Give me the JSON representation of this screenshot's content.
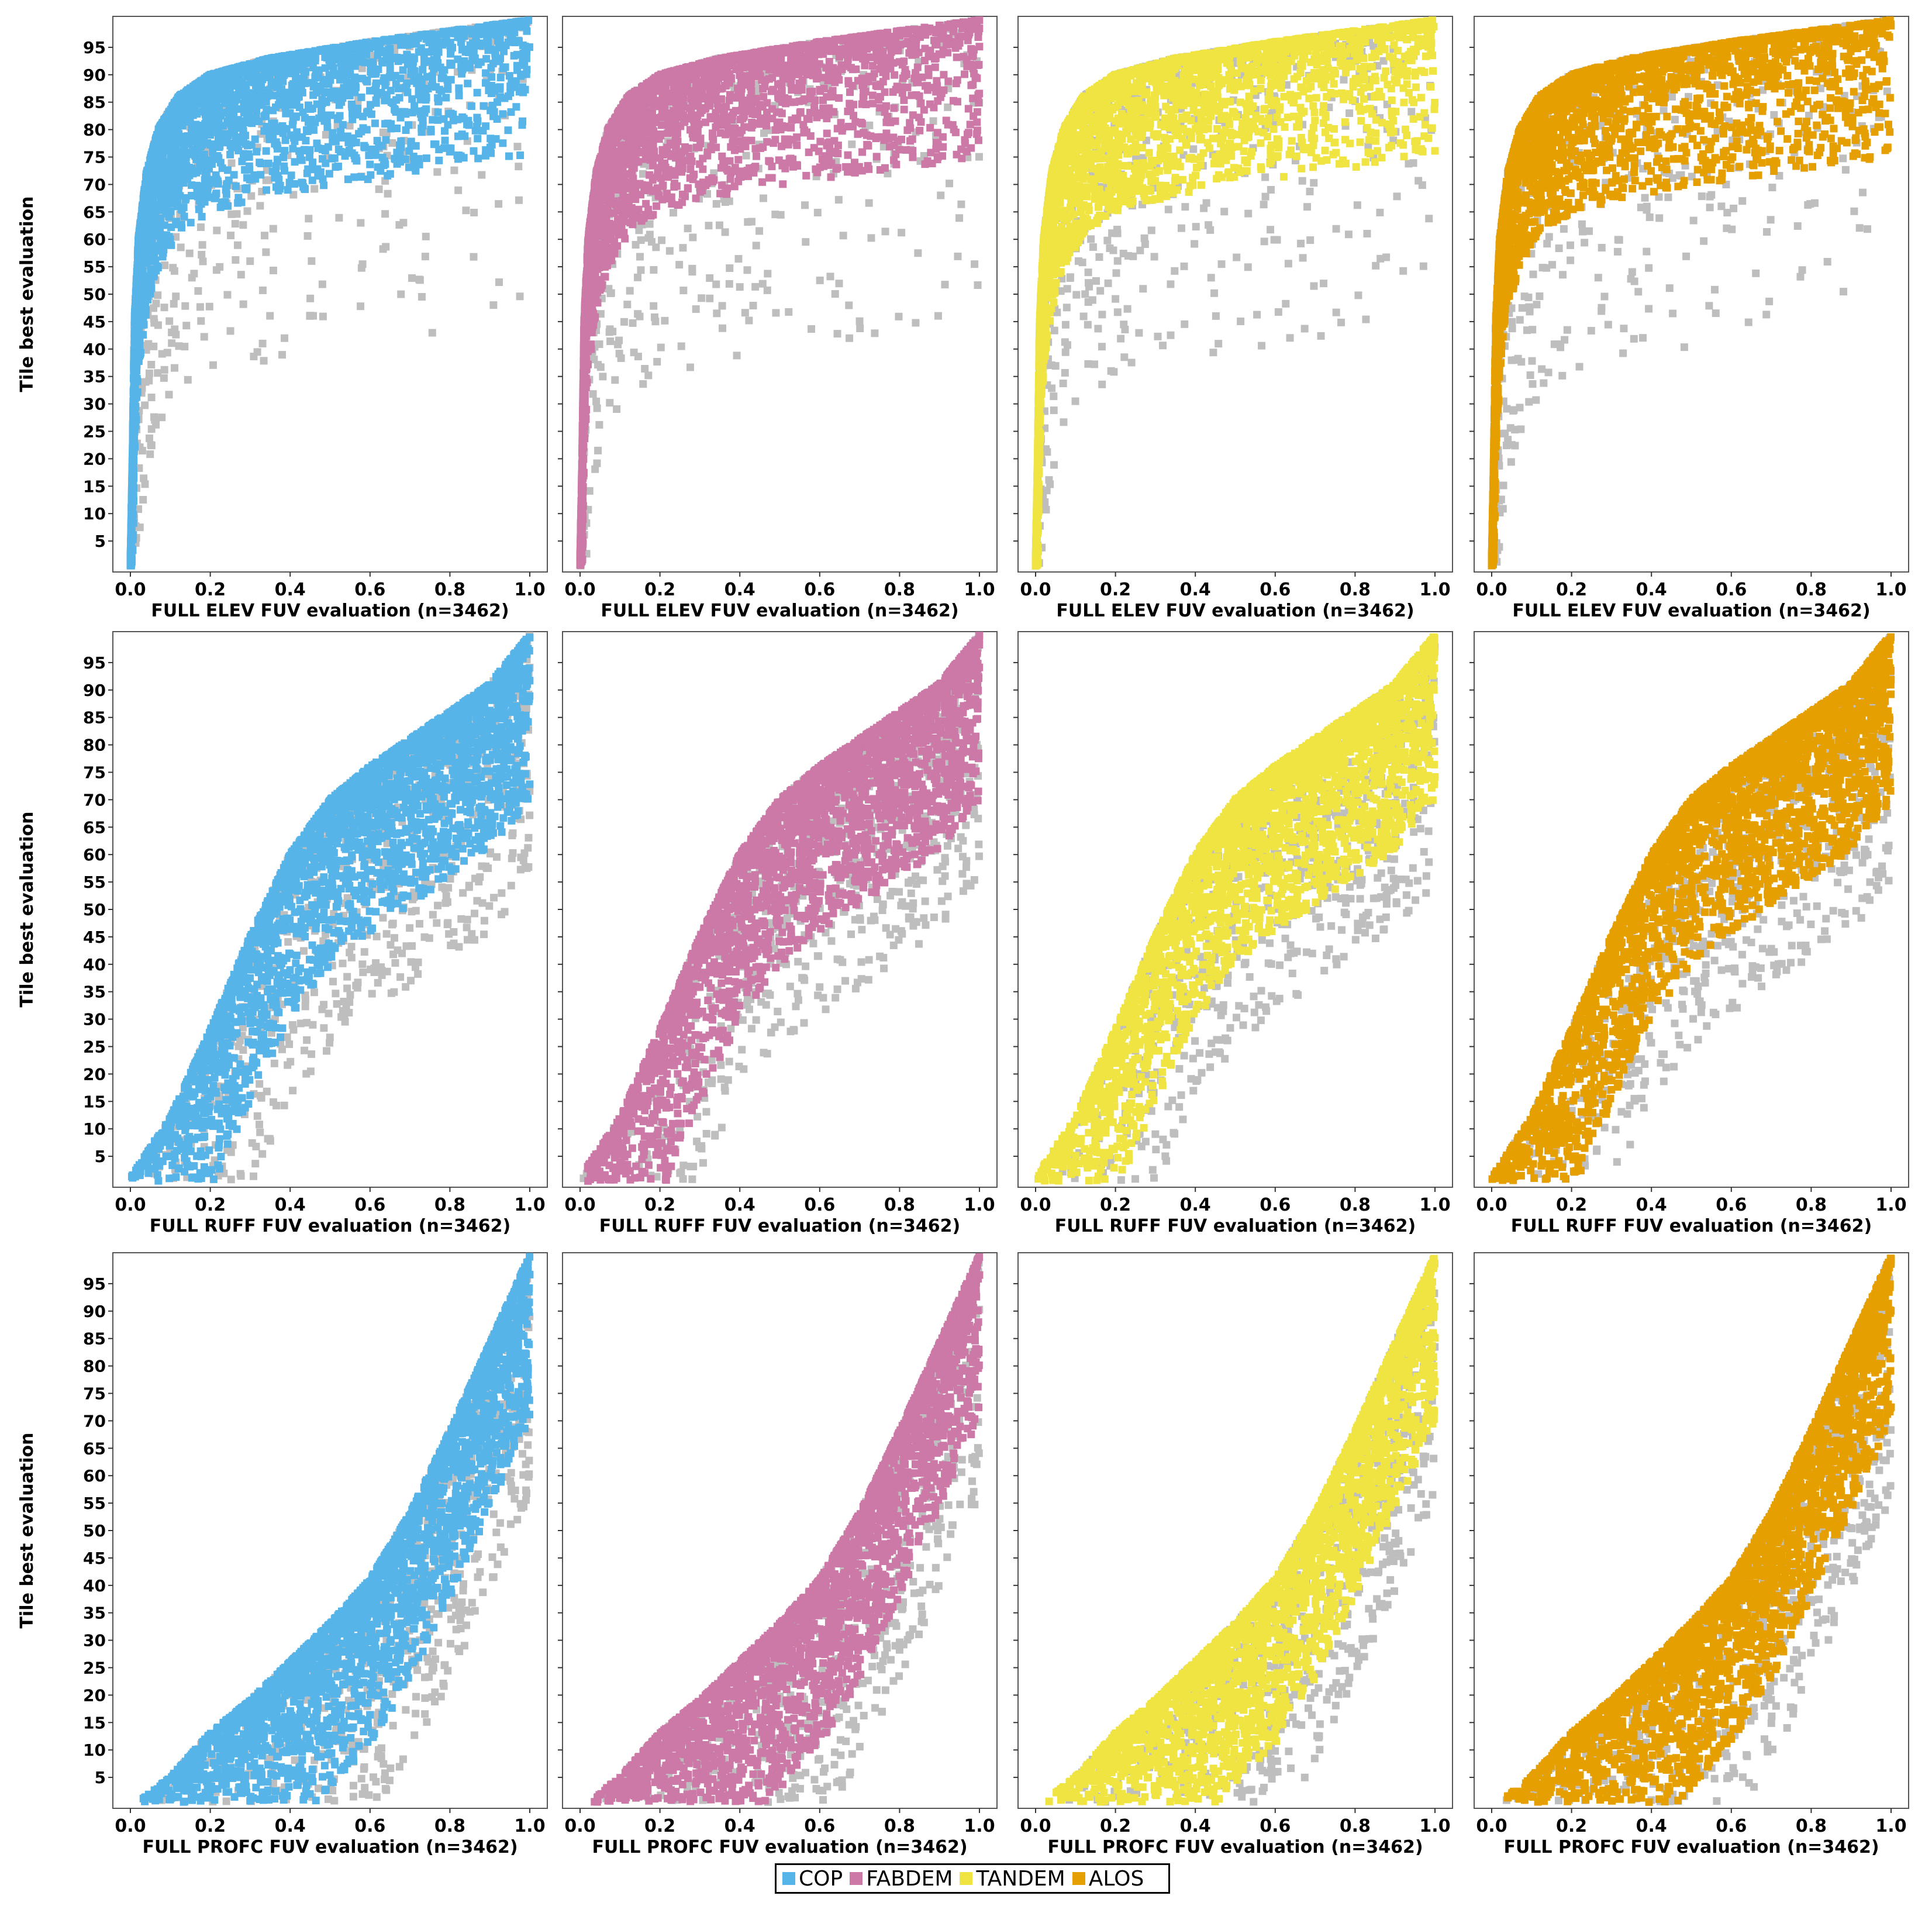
{
  "figure": {
    "ylabel": "Tile best evaluation",
    "ytick_labels": [
      "5",
      "10",
      "15",
      "20",
      "25",
      "30",
      "35",
      "40",
      "45",
      "50",
      "55",
      "60",
      "65",
      "70",
      "75",
      "80",
      "85",
      "90",
      "95"
    ],
    "xtick_labels": [
      "0.0",
      "0.2",
      "0.4",
      "0.6",
      "0.8",
      "1.0"
    ],
    "legend": [
      {
        "name": "COP",
        "color": "#56B4E9"
      },
      {
        "name": "FABDEM",
        "color": "#CC79A7"
      },
      {
        "name": "TANDEM",
        "color": "#F0E442"
      },
      {
        "name": "ALOS",
        "color": "#E69F00"
      }
    ],
    "background_points_color": "#BEBEBE"
  },
  "chart_data": [
    {
      "type": "scatter",
      "series": "COP",
      "parameter": "ELEV",
      "xlabel": "FULL ELEV FUV  evaluation  (n=3462)",
      "ylabel": "Tile best evaluation",
      "xlim": [
        0,
        1
      ],
      "ylim": [
        0,
        100
      ],
      "frontier": [
        [
          0.0,
          1
        ],
        [
          0.005,
          20
        ],
        [
          0.01,
          45
        ],
        [
          0.02,
          60
        ],
        [
          0.04,
          72
        ],
        [
          0.07,
          80
        ],
        [
          0.12,
          86
        ],
        [
          0.2,
          90
        ],
        [
          0.35,
          93
        ],
        [
          0.6,
          96
        ],
        [
          0.8,
          98
        ],
        [
          1.0,
          100
        ]
      ]
    },
    {
      "type": "scatter",
      "series": "FABDEM",
      "parameter": "ELEV",
      "xlabel": "FULL ELEV FUV  evaluation  (n=3462)",
      "ylabel": "Tile best evaluation",
      "xlim": [
        0,
        1
      ],
      "ylim": [
        0,
        100
      ],
      "frontier": [
        [
          0.0,
          1
        ],
        [
          0.005,
          20
        ],
        [
          0.01,
          45
        ],
        [
          0.02,
          60
        ],
        [
          0.04,
          72
        ],
        [
          0.07,
          80
        ],
        [
          0.12,
          86
        ],
        [
          0.2,
          90
        ],
        [
          0.35,
          93
        ],
        [
          0.6,
          96
        ],
        [
          0.8,
          98
        ],
        [
          1.0,
          100
        ]
      ]
    },
    {
      "type": "scatter",
      "series": "TANDEM",
      "parameter": "ELEV",
      "xlabel": "FULL ELEV FUV  evaluation  (n=3462)",
      "ylabel": "Tile best evaluation",
      "xlim": [
        0,
        1
      ],
      "ylim": [
        0,
        100
      ],
      "frontier": [
        [
          0.0,
          1
        ],
        [
          0.005,
          20
        ],
        [
          0.01,
          45
        ],
        [
          0.02,
          60
        ],
        [
          0.04,
          72
        ],
        [
          0.07,
          80
        ],
        [
          0.12,
          86
        ],
        [
          0.2,
          90
        ],
        [
          0.35,
          93
        ],
        [
          0.6,
          96
        ],
        [
          0.8,
          98
        ],
        [
          1.0,
          100
        ]
      ]
    },
    {
      "type": "scatter",
      "series": "ALOS",
      "parameter": "ELEV",
      "xlabel": "FULL ELEV FUV  evaluation  (n=3462)",
      "ylabel": "Tile best evaluation",
      "xlim": [
        0,
        1
      ],
      "ylim": [
        0,
        100
      ],
      "frontier": [
        [
          0.0,
          1
        ],
        [
          0.005,
          20
        ],
        [
          0.01,
          45
        ],
        [
          0.02,
          60
        ],
        [
          0.04,
          72
        ],
        [
          0.07,
          80
        ],
        [
          0.12,
          86
        ],
        [
          0.2,
          90
        ],
        [
          0.35,
          93
        ],
        [
          0.6,
          96
        ],
        [
          0.8,
          98
        ],
        [
          1.0,
          100
        ]
      ]
    },
    {
      "type": "scatter",
      "series": "COP",
      "parameter": "RUFF",
      "xlabel": "FULL RUFF FUV  evaluation  (n=3462)",
      "ylabel": "Tile best evaluation",
      "xlim": [
        0,
        1
      ],
      "ylim": [
        0,
        100
      ],
      "frontier": [
        [
          0.0,
          1
        ],
        [
          0.1,
          12
        ],
        [
          0.2,
          28
        ],
        [
          0.3,
          45
        ],
        [
          0.4,
          60
        ],
        [
          0.5,
          70
        ],
        [
          0.6,
          76
        ],
        [
          0.7,
          81
        ],
        [
          0.8,
          86
        ],
        [
          0.9,
          91
        ],
        [
          1.0,
          100
        ]
      ]
    },
    {
      "type": "scatter",
      "series": "FABDEM",
      "parameter": "RUFF",
      "xlabel": "FULL RUFF FUV  evaluation  (n=3462)",
      "ylabel": "Tile best evaluation",
      "xlim": [
        0,
        1
      ],
      "ylim": [
        0,
        100
      ],
      "frontier": [
        [
          0.0,
          1
        ],
        [
          0.1,
          12
        ],
        [
          0.2,
          28
        ],
        [
          0.3,
          45
        ],
        [
          0.4,
          60
        ],
        [
          0.5,
          70
        ],
        [
          0.6,
          76
        ],
        [
          0.7,
          81
        ],
        [
          0.8,
          86
        ],
        [
          0.9,
          91
        ],
        [
          1.0,
          100
        ]
      ]
    },
    {
      "type": "scatter",
      "series": "TANDEM",
      "parameter": "RUFF",
      "xlabel": "FULL RUFF FUV  evaluation  (n=3462)",
      "ylabel": "Tile best evaluation",
      "xlim": [
        0,
        1
      ],
      "ylim": [
        0,
        100
      ],
      "frontier": [
        [
          0.0,
          1
        ],
        [
          0.1,
          12
        ],
        [
          0.2,
          28
        ],
        [
          0.3,
          45
        ],
        [
          0.4,
          60
        ],
        [
          0.5,
          70
        ],
        [
          0.6,
          76
        ],
        [
          0.7,
          81
        ],
        [
          0.8,
          86
        ],
        [
          0.9,
          91
        ],
        [
          1.0,
          100
        ]
      ]
    },
    {
      "type": "scatter",
      "series": "ALOS",
      "parameter": "RUFF",
      "xlabel": "FULL RUFF FUV  evaluation  (n=3462)",
      "ylabel": "Tile best evaluation",
      "xlim": [
        0,
        1
      ],
      "ylim": [
        0,
        100
      ],
      "frontier": [
        [
          0.0,
          1
        ],
        [
          0.1,
          12
        ],
        [
          0.2,
          28
        ],
        [
          0.3,
          45
        ],
        [
          0.4,
          60
        ],
        [
          0.5,
          70
        ],
        [
          0.6,
          76
        ],
        [
          0.7,
          81
        ],
        [
          0.8,
          86
        ],
        [
          0.9,
          91
        ],
        [
          1.0,
          100
        ]
      ]
    },
    {
      "type": "scatter",
      "series": "COP",
      "parameter": "PROFC",
      "xlabel": "FULL PROFC FUV  evaluation  (n=3462)",
      "ylabel": "Tile best evaluation",
      "xlim": [
        0,
        1
      ],
      "ylim": [
        0,
        100
      ],
      "frontier": [
        [
          0.03,
          1
        ],
        [
          0.1,
          5
        ],
        [
          0.2,
          13
        ],
        [
          0.3,
          19
        ],
        [
          0.4,
          26
        ],
        [
          0.5,
          33
        ],
        [
          0.6,
          41
        ],
        [
          0.7,
          53
        ],
        [
          0.8,
          68
        ],
        [
          0.9,
          84
        ],
        [
          1.0,
          100
        ]
      ]
    },
    {
      "type": "scatter",
      "series": "FABDEM",
      "parameter": "PROFC",
      "xlabel": "FULL PROFC FUV  evaluation  (n=3462)",
      "ylabel": "Tile best evaluation",
      "xlim": [
        0,
        1
      ],
      "ylim": [
        0,
        100
      ],
      "frontier": [
        [
          0.03,
          1
        ],
        [
          0.1,
          5
        ],
        [
          0.2,
          13
        ],
        [
          0.3,
          19
        ],
        [
          0.4,
          26
        ],
        [
          0.5,
          33
        ],
        [
          0.6,
          41
        ],
        [
          0.7,
          53
        ],
        [
          0.8,
          68
        ],
        [
          0.9,
          84
        ],
        [
          1.0,
          100
        ]
      ]
    },
    {
      "type": "scatter",
      "series": "TANDEM",
      "parameter": "PROFC",
      "xlabel": "FULL PROFC FUV  evaluation  (n=3462)",
      "ylabel": "Tile best evaluation",
      "xlim": [
        0,
        1
      ],
      "ylim": [
        0,
        100
      ],
      "frontier": [
        [
          0.03,
          1
        ],
        [
          0.1,
          5
        ],
        [
          0.2,
          13
        ],
        [
          0.3,
          19
        ],
        [
          0.4,
          26
        ],
        [
          0.5,
          33
        ],
        [
          0.6,
          41
        ],
        [
          0.7,
          53
        ],
        [
          0.8,
          68
        ],
        [
          0.9,
          84
        ],
        [
          1.0,
          100
        ]
      ]
    },
    {
      "type": "scatter",
      "series": "ALOS",
      "parameter": "PROFC",
      "xlabel": "FULL PROFC FUV  evaluation  (n=3462)",
      "ylabel": "Tile best evaluation",
      "xlim": [
        0,
        1
      ],
      "ylim": [
        0,
        100
      ],
      "frontier": [
        [
          0.03,
          1
        ],
        [
          0.1,
          5
        ],
        [
          0.2,
          13
        ],
        [
          0.3,
          19
        ],
        [
          0.4,
          26
        ],
        [
          0.5,
          33
        ],
        [
          0.6,
          41
        ],
        [
          0.7,
          53
        ],
        [
          0.8,
          68
        ],
        [
          0.9,
          84
        ],
        [
          1.0,
          100
        ]
      ]
    }
  ]
}
